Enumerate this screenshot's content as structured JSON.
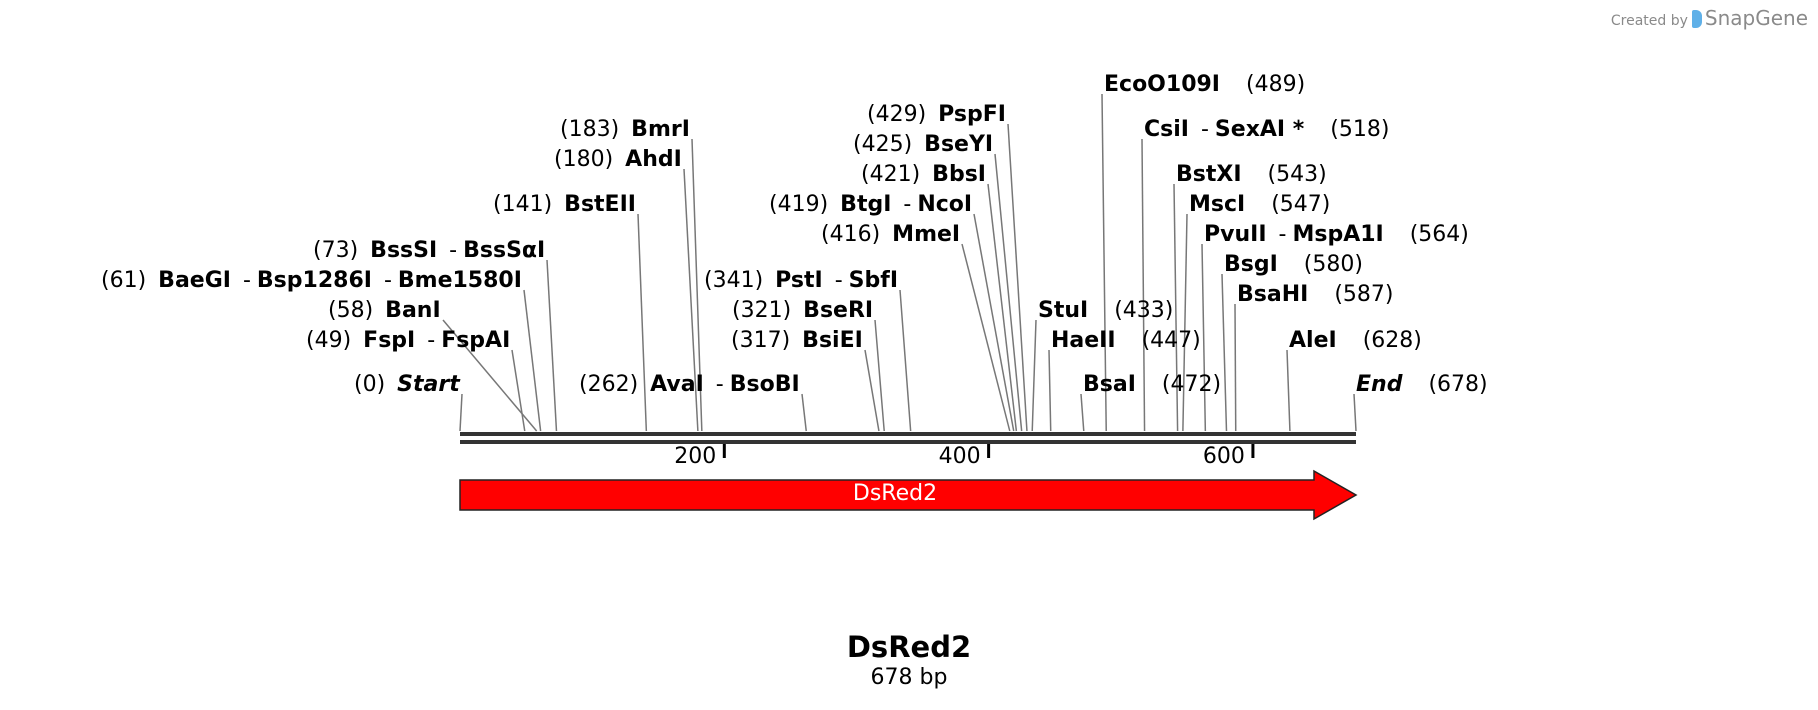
{
  "credit": {
    "prefix": "Created by",
    "brand": "SnapGene"
  },
  "sequence": {
    "name": "DsRed2",
    "length_label": "678 bp",
    "length": 678
  },
  "scale_ticks": [
    200,
    400,
    600
  ],
  "feature": {
    "name": "DsRed2",
    "start": 0,
    "end": 678,
    "color": "#ff0000",
    "direction": "forward"
  },
  "sites": [
    {
      "pos": 0,
      "pos_label": "(0)",
      "names": [
        "Start"
      ],
      "kind": "start"
    },
    {
      "pos": 49,
      "pos_label": "(49)",
      "names": [
        "FspI",
        "FspAI"
      ]
    },
    {
      "pos": 58,
      "pos_label": "(58)",
      "names": [
        "BanI"
      ]
    },
    {
      "pos": 61,
      "pos_label": "(61)",
      "names": [
        "BaeGI",
        "Bsp1286I",
        "Bme1580I"
      ]
    },
    {
      "pos": 73,
      "pos_label": "(73)",
      "names": [
        "BssSI",
        "BssSαI"
      ]
    },
    {
      "pos": 141,
      "pos_label": "(141)",
      "names": [
        "BstEII"
      ]
    },
    {
      "pos": 180,
      "pos_label": "(180)",
      "names": [
        "AhdI"
      ]
    },
    {
      "pos": 183,
      "pos_label": "(183)",
      "names": [
        "BmrI"
      ]
    },
    {
      "pos": 262,
      "pos_label": "(262)",
      "names": [
        "AvaI",
        "BsoBI"
      ]
    },
    {
      "pos": 317,
      "pos_label": "(317)",
      "names": [
        "BsiEI"
      ]
    },
    {
      "pos": 321,
      "pos_label": "(321)",
      "names": [
        "BseRI"
      ]
    },
    {
      "pos": 341,
      "pos_label": "(341)",
      "names": [
        "PstI",
        "SbfI"
      ]
    },
    {
      "pos": 416,
      "pos_label": "(416)",
      "names": [
        "MmeI"
      ]
    },
    {
      "pos": 419,
      "pos_label": "(419)",
      "names": [
        "BtgI",
        "NcoI"
      ]
    },
    {
      "pos": 421,
      "pos_label": "(421)",
      "names": [
        "BbsI"
      ]
    },
    {
      "pos": 425,
      "pos_label": "(425)",
      "names": [
        "BseYI"
      ]
    },
    {
      "pos": 429,
      "pos_label": "(429)",
      "names": [
        "PspFI"
      ]
    },
    {
      "pos": 433,
      "pos_label": "(433)",
      "names": [
        "StuI"
      ]
    },
    {
      "pos": 447,
      "pos_label": "(447)",
      "names": [
        "HaeII"
      ]
    },
    {
      "pos": 472,
      "pos_label": "(472)",
      "names": [
        "BsaI"
      ]
    },
    {
      "pos": 489,
      "pos_label": "(489)",
      "names": [
        "EcoO109I"
      ]
    },
    {
      "pos": 518,
      "pos_label": "(518)",
      "names": [
        "CsiI",
        "SexAI *"
      ]
    },
    {
      "pos": 543,
      "pos_label": "(543)",
      "names": [
        "BstXI"
      ]
    },
    {
      "pos": 547,
      "pos_label": "(547)",
      "names": [
        "MscI"
      ]
    },
    {
      "pos": 564,
      "pos_label": "(564)",
      "names": [
        "PvuII",
        "MspA1I"
      ]
    },
    {
      "pos": 580,
      "pos_label": "(580)",
      "names": [
        "BsgI"
      ]
    },
    {
      "pos": 587,
      "pos_label": "(587)",
      "names": [
        "BsaHI"
      ]
    },
    {
      "pos": 628,
      "pos_label": "(628)",
      "names": [
        "AleI"
      ]
    },
    {
      "pos": 678,
      "pos_label": "(678)",
      "names": [
        "End"
      ],
      "kind": "end"
    }
  ]
}
